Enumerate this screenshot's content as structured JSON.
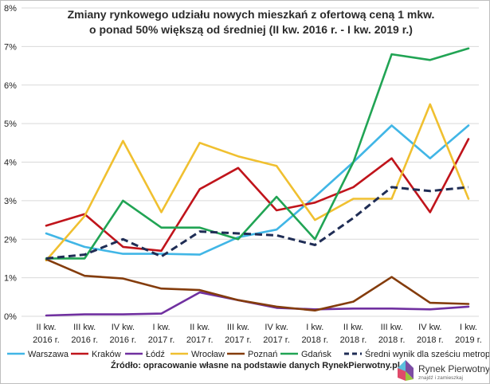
{
  "chart_data": {
    "type": "line",
    "title": [
      "Zmiany rynkowego udziału nowych mieszkań z ofertową ceną 1 mkw.",
      "o ponad 50% większą od średniej (II kw. 2016 r. - I kw. 2019 r.)"
    ],
    "categories": [
      [
        "II kw.",
        "2016 r."
      ],
      [
        "III kw.",
        "2016 r."
      ],
      [
        "IV kw.",
        "2016 r."
      ],
      [
        "I kw.",
        "2017 r."
      ],
      [
        "II kw.",
        "2017 r."
      ],
      [
        "III kw.",
        "2017 r."
      ],
      [
        "IV kw.",
        "2017 r."
      ],
      [
        "I kw.",
        "2018 r."
      ],
      [
        "II kw.",
        "2018 r."
      ],
      [
        "III kw.",
        "2018 r."
      ],
      [
        "IV kw.",
        "2018 r."
      ],
      [
        "I kw.",
        "2019 r."
      ]
    ],
    "yticks": [
      "0%",
      "1%",
      "2%",
      "3%",
      "4%",
      "5%",
      "6%",
      "7%",
      "8%"
    ],
    "ylim": [
      0,
      8
    ],
    "grid": true,
    "legend_position": "bottom",
    "series": [
      {
        "name": "Warszawa",
        "color": "#41b6e6",
        "dashed": false,
        "values": [
          2.15,
          1.8,
          1.62,
          1.62,
          1.6,
          2.05,
          2.25,
          3.1,
          4.0,
          4.95,
          4.1,
          4.95
        ]
      },
      {
        "name": "Kraków",
        "color": "#c0141b",
        "dashed": false,
        "values": [
          2.35,
          2.65,
          1.8,
          1.7,
          3.3,
          3.85,
          2.75,
          2.95,
          3.35,
          4.1,
          2.7,
          4.6
        ]
      },
      {
        "name": "Łódź",
        "color": "#7030a0",
        "dashed": false,
        "values": [
          0.02,
          0.05,
          0.05,
          0.07,
          0.62,
          0.42,
          0.22,
          0.18,
          0.2,
          0.2,
          0.18,
          0.25
        ]
      },
      {
        "name": "Wrocław",
        "color": "#f0c030",
        "dashed": false,
        "values": [
          1.45,
          2.6,
          4.55,
          2.7,
          4.5,
          4.15,
          3.9,
          2.5,
          3.05,
          3.05,
          5.5,
          3.05
        ]
      },
      {
        "name": "Poznań",
        "color": "#843c0c",
        "dashed": false,
        "values": [
          1.48,
          1.05,
          0.98,
          0.72,
          0.68,
          0.42,
          0.25,
          0.15,
          0.38,
          1.02,
          0.35,
          0.32
        ]
      },
      {
        "name": "Gdańsk",
        "color": "#21a454",
        "dashed": false,
        "values": [
          1.5,
          1.5,
          3.0,
          2.3,
          2.3,
          2.0,
          3.1,
          2.0,
          4.0,
          6.8,
          6.65,
          6.95
        ]
      },
      {
        "name": "Średni wynik dla sześciu metropolii",
        "color": "#1f2d55",
        "dashed": true,
        "values": [
          1.5,
          1.6,
          2.0,
          1.55,
          2.2,
          2.15,
          2.1,
          1.85,
          2.55,
          3.35,
          3.25,
          3.35
        ]
      }
    ]
  },
  "source": "Źródło: opracowanie własne na podstawie danych RynekPierwotny.pl",
  "logo": {
    "name": "Rynek Pierwotny",
    "tagline": "znajdź i zamieszkaj"
  }
}
